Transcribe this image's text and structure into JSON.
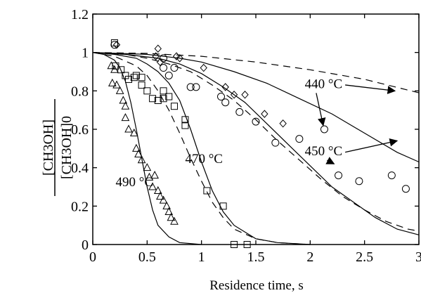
{
  "chart_data": {
    "type": "scatter",
    "title": "",
    "xlabel": "Residence time, s",
    "ylabel_numerator": "[CH3OH]",
    "ylabel_denominator": "[CH3OH]0",
    "xlim": [
      0,
      3
    ],
    "ylim": [
      0,
      1.2
    ],
    "xticks": [
      "0",
      "0.5",
      "1",
      "1.5",
      "2",
      "2.5",
      "3"
    ],
    "yticks": [
      "0",
      "0.2",
      "0.4",
      "0.6",
      "0.8",
      "1",
      "1.2"
    ],
    "grid": false,
    "series": [
      {
        "marker": "triangle",
        "points": [
          [
            0.17,
            0.93
          ],
          [
            0.18,
            0.84
          ],
          [
            0.2,
            0.91
          ],
          [
            0.22,
            0.83
          ],
          [
            0.25,
            0.8
          ],
          [
            0.28,
            0.75
          ],
          [
            0.3,
            0.72
          ],
          [
            0.3,
            0.66
          ],
          [
            0.33,
            0.6
          ],
          [
            0.38,
            0.58
          ],
          [
            0.4,
            0.5
          ],
          [
            0.42,
            0.47
          ],
          [
            0.45,
            0.44
          ],
          [
            0.5,
            0.4
          ],
          [
            0.52,
            0.35
          ],
          [
            0.55,
            0.3
          ],
          [
            0.57,
            0.36
          ],
          [
            0.6,
            0.28
          ],
          [
            0.62,
            0.25
          ],
          [
            0.65,
            0.23
          ],
          [
            0.68,
            0.2
          ],
          [
            0.7,
            0.17
          ],
          [
            0.72,
            0.14
          ],
          [
            0.75,
            0.12
          ]
        ]
      },
      {
        "marker": "square",
        "points": [
          [
            0.2,
            1.05
          ],
          [
            0.21,
            0.93
          ],
          [
            0.26,
            0.91
          ],
          [
            0.3,
            0.88
          ],
          [
            0.33,
            0.86
          ],
          [
            0.38,
            0.87
          ],
          [
            0.4,
            0.88
          ],
          [
            0.45,
            0.87
          ],
          [
            0.45,
            0.83
          ],
          [
            0.5,
            0.8
          ],
          [
            0.55,
            0.76
          ],
          [
            0.6,
            0.75
          ],
          [
            0.65,
            0.8
          ],
          [
            0.65,
            0.76
          ],
          [
            0.7,
            0.77
          ],
          [
            0.75,
            0.72
          ],
          [
            0.85,
            0.65
          ],
          [
            0.85,
            0.62
          ],
          [
            1.05,
            0.28
          ],
          [
            1.2,
            0.2
          ],
          [
            1.3,
            0.0
          ],
          [
            1.42,
            0.0
          ]
        ]
      },
      {
        "marker": "circle",
        "points": [
          [
            0.2,
            1.04
          ],
          [
            0.65,
            0.97
          ],
          [
            0.65,
            0.92
          ],
          [
            0.7,
            0.88
          ],
          [
            0.75,
            0.92
          ],
          [
            0.9,
            0.82
          ],
          [
            0.95,
            0.82
          ],
          [
            1.18,
            0.77
          ],
          [
            1.22,
            0.74
          ],
          [
            1.35,
            0.69
          ],
          [
            1.5,
            0.64
          ],
          [
            1.68,
            0.53
          ],
          [
            1.9,
            0.55
          ],
          [
            2.13,
            0.6
          ],
          [
            2.26,
            0.36
          ],
          [
            2.45,
            0.33
          ],
          [
            2.75,
            0.36
          ],
          [
            2.88,
            0.29
          ]
        ]
      },
      {
        "marker": "diamond",
        "points": [
          [
            0.22,
            1.04
          ],
          [
            0.6,
            1.02
          ],
          [
            0.58,
            0.98
          ],
          [
            0.62,
            0.95
          ],
          [
            0.77,
            0.98
          ],
          [
            0.8,
            0.97
          ],
          [
            1.02,
            0.92
          ],
          [
            1.22,
            0.82
          ],
          [
            1.3,
            0.78
          ],
          [
            1.4,
            0.78
          ],
          [
            1.58,
            0.68
          ],
          [
            1.75,
            0.63
          ]
        ]
      }
    ],
    "curves": [
      {
        "style": "solid",
        "points": [
          [
            0,
            1
          ],
          [
            0.1,
            0.99
          ],
          [
            0.2,
            0.96
          ],
          [
            0.25,
            0.92
          ],
          [
            0.3,
            0.85
          ],
          [
            0.35,
            0.74
          ],
          [
            0.4,
            0.6
          ],
          [
            0.45,
            0.45
          ],
          [
            0.5,
            0.3
          ],
          [
            0.55,
            0.18
          ],
          [
            0.6,
            0.1
          ],
          [
            0.7,
            0.04
          ],
          [
            0.8,
            0.01
          ],
          [
            1.0,
            0.0
          ]
        ]
      },
      {
        "style": "dashed",
        "points": [
          [
            0,
            1
          ],
          [
            0.2,
            0.98
          ],
          [
            0.4,
            0.93
          ],
          [
            0.5,
            0.88
          ],
          [
            0.6,
            0.8
          ],
          [
            0.7,
            0.7
          ],
          [
            0.8,
            0.58
          ],
          [
            0.9,
            0.45
          ],
          [
            1.0,
            0.33
          ],
          [
            1.1,
            0.22
          ],
          [
            1.2,
            0.14
          ],
          [
            1.3,
            0.08
          ],
          [
            1.5,
            0.03
          ],
          [
            1.7,
            0.01
          ],
          [
            2.0,
            0.0
          ]
        ]
      },
      {
        "style": "solid",
        "points": [
          [
            0,
            1
          ],
          [
            0.2,
            0.99
          ],
          [
            0.4,
            0.97
          ],
          [
            0.5,
            0.94
          ],
          [
            0.6,
            0.9
          ],
          [
            0.7,
            0.84
          ],
          [
            0.8,
            0.75
          ],
          [
            0.9,
            0.6
          ],
          [
            1.0,
            0.43
          ],
          [
            1.1,
            0.28
          ],
          [
            1.2,
            0.17
          ],
          [
            1.3,
            0.1
          ],
          [
            1.5,
            0.03
          ],
          [
            1.7,
            0.01
          ],
          [
            2.0,
            0.0
          ]
        ]
      },
      {
        "style": "dashed",
        "points": [
          [
            0,
            1
          ],
          [
            0.3,
            0.99
          ],
          [
            0.5,
            0.97
          ],
          [
            0.7,
            0.94
          ],
          [
            0.9,
            0.9
          ],
          [
            1.1,
            0.83
          ],
          [
            1.3,
            0.75
          ],
          [
            1.5,
            0.65
          ],
          [
            1.7,
            0.54
          ],
          [
            1.9,
            0.44
          ],
          [
            2.1,
            0.34
          ],
          [
            2.3,
            0.25
          ],
          [
            2.5,
            0.18
          ],
          [
            2.7,
            0.12
          ],
          [
            2.9,
            0.08
          ],
          [
            3.0,
            0.07
          ]
        ]
      },
      {
        "style": "solid",
        "points": [
          [
            0,
            1
          ],
          [
            0.3,
            0.99
          ],
          [
            0.6,
            0.97
          ],
          [
            0.8,
            0.94
          ],
          [
            1.0,
            0.89
          ],
          [
            1.2,
            0.82
          ],
          [
            1.4,
            0.74
          ],
          [
            1.6,
            0.63
          ],
          [
            1.8,
            0.52
          ],
          [
            2.0,
            0.41
          ],
          [
            2.2,
            0.3
          ],
          [
            2.4,
            0.22
          ],
          [
            2.6,
            0.14
          ],
          [
            2.8,
            0.08
          ],
          [
            3.0,
            0.05
          ]
        ]
      },
      {
        "style": "dashed",
        "points": [
          [
            0,
            1
          ],
          [
            0.5,
            0.995
          ],
          [
            1.0,
            0.98
          ],
          [
            1.5,
            0.95
          ],
          [
            2.0,
            0.91
          ],
          [
            2.5,
            0.86
          ],
          [
            3.0,
            0.79
          ]
        ]
      },
      {
        "style": "solid",
        "points": [
          [
            0,
            1
          ],
          [
            0.5,
            0.99
          ],
          [
            0.8,
            0.97
          ],
          [
            1.0,
            0.95
          ],
          [
            1.3,
            0.9
          ],
          [
            1.6,
            0.84
          ],
          [
            1.9,
            0.76
          ],
          [
            2.2,
            0.68
          ],
          [
            2.5,
            0.58
          ],
          [
            2.8,
            0.48
          ],
          [
            3.0,
            0.43
          ]
        ]
      }
    ],
    "annotations": [
      {
        "label": "440 °C",
        "x": 1.95,
        "y": 0.84,
        "arrows_to": [
          [
            2.78,
            0.8
          ],
          [
            2.12,
            0.62
          ]
        ]
      },
      {
        "label": "450 °C",
        "x": 1.95,
        "y": 0.49,
        "arrows_to": [
          [
            2.8,
            0.54
          ],
          [
            2.22,
            0.42
          ]
        ]
      },
      {
        "label": "470 °C",
        "x": 0.85,
        "y": 0.45
      },
      {
        "label": "490 °C",
        "x": 0.21,
        "y": 0.33
      }
    ]
  }
}
